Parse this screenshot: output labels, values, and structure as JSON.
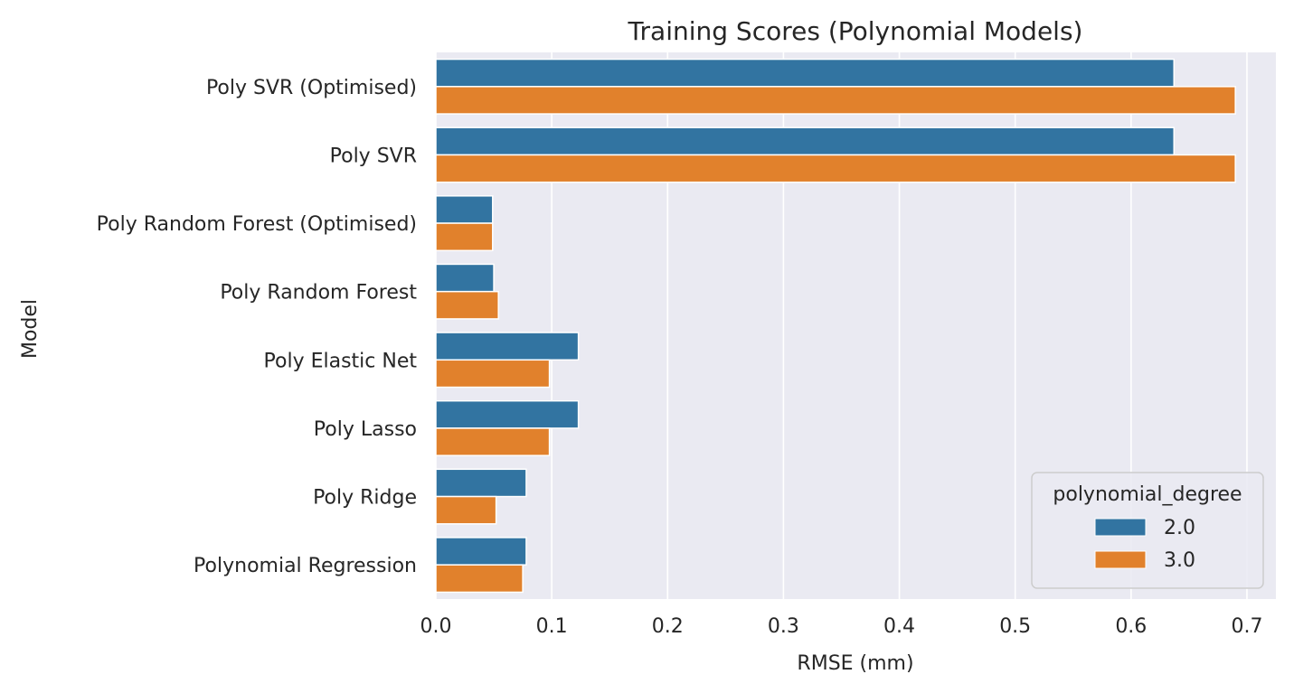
{
  "chart_data": {
    "type": "bar",
    "orientation": "horizontal",
    "title": "Training Scores (Polynomial Models)",
    "xlabel": "RMSE (mm)",
    "ylabel": "Model",
    "xlim": [
      0,
      0.725
    ],
    "xticks": [
      "0.0",
      "0.1",
      "0.2",
      "0.3",
      "0.4",
      "0.5",
      "0.6",
      "0.7"
    ],
    "grid": true,
    "legend_title": "polynomial_degree",
    "legend_position": "lower-right",
    "background_color": "#EAEAF2",
    "categories": [
      "Poly SVR (Optimised)",
      "Poly SVR",
      "Poly Random Forest (Optimised)",
      "Poly Random Forest",
      "Poly Elastic Net",
      "Poly Lasso",
      "Poly Ridge",
      "Polynomial Regression"
    ],
    "series": [
      {
        "name": "2.0",
        "color": "#3274A1",
        "values": [
          0.637,
          0.637,
          0.049,
          0.05,
          0.123,
          0.123,
          0.078,
          0.078
        ]
      },
      {
        "name": "3.0",
        "color": "#E1812C",
        "values": [
          0.69,
          0.69,
          0.049,
          0.054,
          0.098,
          0.098,
          0.052,
          0.075
        ]
      }
    ]
  }
}
